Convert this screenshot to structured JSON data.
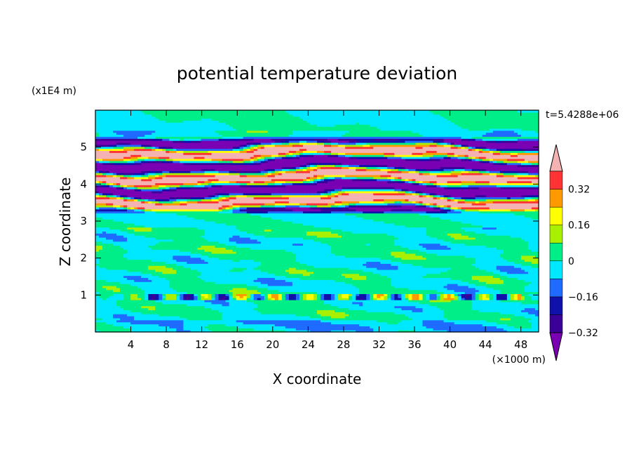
{
  "chart_data": {
    "type": "heatmap",
    "title": "potential temperature deviation",
    "xlabel": "X coordinate",
    "ylabel": "Z coordinate",
    "x_unit": "(×1000 m)",
    "y_unit": "(x1E4 m)",
    "time_label": "t=5.4288e+06",
    "xlim": [
      0,
      50
    ],
    "ylim": [
      0,
      6
    ],
    "x_ticks": [
      "4",
      "8",
      "12",
      "16",
      "20",
      "24",
      "28",
      "32",
      "36",
      "40",
      "44",
      "48"
    ],
    "y_ticks": [
      "1",
      "2",
      "3",
      "4",
      "5"
    ],
    "colorbar": {
      "tick_labels": [
        "0.32",
        "0.16",
        "0",
        "−0.16",
        "−0.32"
      ],
      "levels": [
        -0.4,
        -0.32,
        -0.24,
        -0.16,
        -0.08,
        0,
        0.08,
        0.16,
        0.24,
        0.32,
        0.4
      ],
      "colors": [
        "#7a00b4",
        "#3a0098",
        "#1010aa",
        "#1f6bff",
        "#00e8ff",
        "#00ee88",
        "#a8f000",
        "#ffff00",
        "#ff9900",
        "#ff3333",
        "#f4b2b2"
      ]
    },
    "regions": [
      {
        "z_range": [
          0,
          2.9
        ],
        "pattern": "near zero, weak (−0.08 to 0.08)"
      },
      {
        "z_range": [
          0.9,
          1.05
        ],
        "pattern": "thin disturbed layer (−0.32 to 0.32)"
      },
      {
        "z_range": [
          3.2,
          5.3
        ],
        "pattern": "strongly layered, alternating ≤ −0.32 and ≥ 0.32"
      },
      {
        "z_range": [
          5.3,
          6
        ],
        "pattern": "near zero, weak"
      }
    ]
  }
}
